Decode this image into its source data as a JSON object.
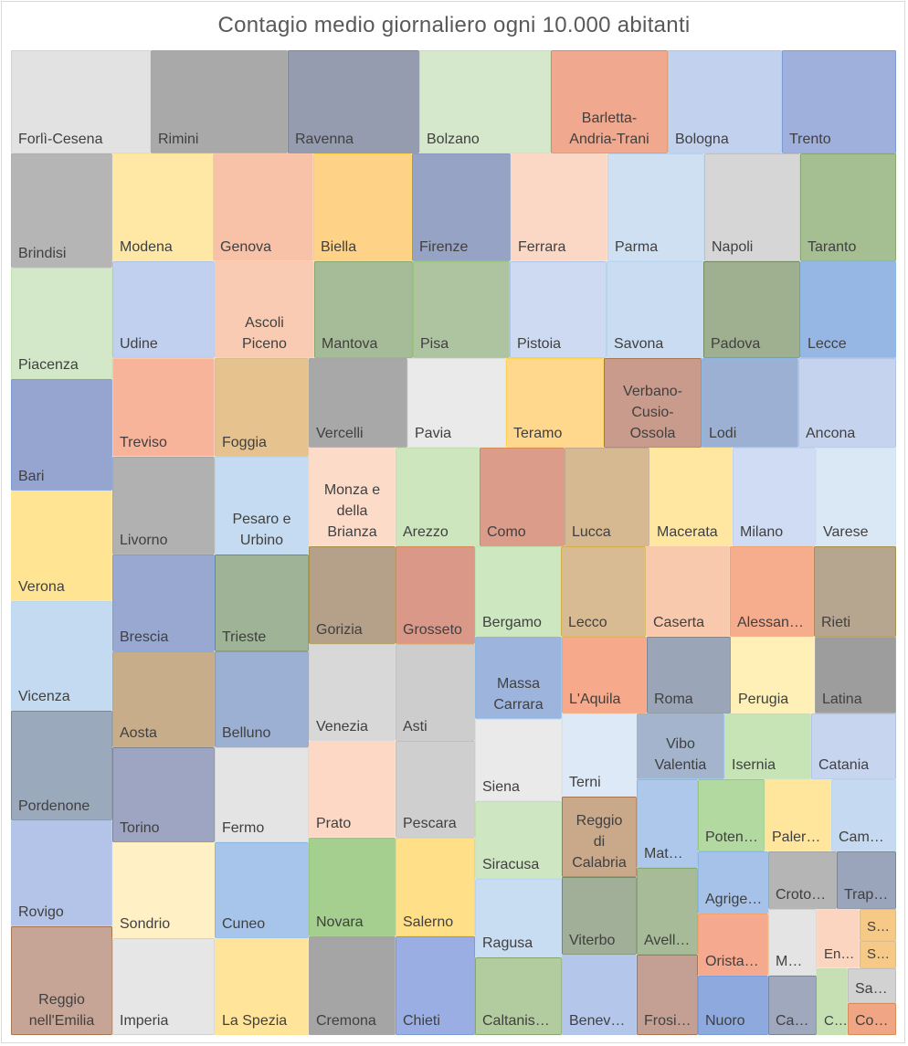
{
  "chart_data": {
    "type": "treemap",
    "title": "Contagio medio giornaliero ogni 10.000 abitanti",
    "values_note": "",
    "items": [
      {
        "name": "Forlì-Cesena",
        "color": "#e2e2e2",
        "border": "#bfbfbf"
      },
      {
        "name": "Rimini",
        "color": "#a9a9a9",
        "border": "#7f7f7f"
      },
      {
        "name": "Ravenna",
        "color": "#959cb0",
        "border": "#4a5370"
      },
      {
        "name": "Bolzano",
        "color": "#d5e8cb",
        "border": "#a9d18e"
      },
      {
        "name": "Barletta-Andria-Trani",
        "color": "#f0a88e",
        "border": "#c55a11"
      },
      {
        "name": "Bologna",
        "color": "#c2d1ee",
        "border": "#8faadc"
      },
      {
        "name": "Trento",
        "color": "#9fb0dd",
        "border": "#4472c4"
      },
      {
        "name": "Brindisi",
        "color": "#b5b5b5",
        "border": "#8c8c8c"
      },
      {
        "name": "Modena",
        "color": "#ffe8a6",
        "border": "#ffd966"
      },
      {
        "name": "Genova",
        "color": "#f8c2a8",
        "border": "#f4b183"
      },
      {
        "name": "Biella",
        "color": "#ffd387",
        "border": "#ffc000"
      },
      {
        "name": "Firenze",
        "color": "#97a3c4",
        "border": "#5a6b9e"
      },
      {
        "name": "Ferrara",
        "color": "#fbd8c6",
        "border": "#f8cbad"
      },
      {
        "name": "Parma",
        "color": "#cfe0f2",
        "border": "#9dc3e6"
      },
      {
        "name": "Napoli",
        "color": "#d6d6d6",
        "border": "#a6a6a6"
      },
      {
        "name": "Taranto",
        "color": "#a5bf93",
        "border": "#548235"
      },
      {
        "name": "Piacenza",
        "color": "#d3e8c8",
        "border": "#a9d18e"
      },
      {
        "name": "Udine",
        "color": "#c1d0ee",
        "border": "#8faadc"
      },
      {
        "name": "Ascoli Piceno",
        "color": "#f9cbb3",
        "border": "#f4b183"
      },
      {
        "name": "Mantova",
        "color": "#a6bb98",
        "border": "#548235"
      },
      {
        "name": "Pisa",
        "color": "#aec3a0",
        "border": "#70ad47"
      },
      {
        "name": "Pistoia",
        "color": "#cddaf2",
        "border": "#8faadc"
      },
      {
        "name": "Savona",
        "color": "#c9dcf1",
        "border": "#9dc3e6"
      },
      {
        "name": "Padova",
        "color": "#9eb08f",
        "border": "#385723"
      },
      {
        "name": "Lecce",
        "color": "#96b7e3",
        "border": "#5b9bd5"
      },
      {
        "name": "Bari",
        "color": "#95a5d0",
        "border": "#4472c4"
      },
      {
        "name": "Treviso",
        "color": "#f7b49a",
        "border": "#f4b183"
      },
      {
        "name": "Foggia",
        "color": "#e6c38e",
        "border": "#c9a15e"
      },
      {
        "name": "Vercelli",
        "color": "#a8a8a8",
        "border": "#7f7f7f"
      },
      {
        "name": "Pavia",
        "color": "#eaeaea",
        "border": "#d0d0d0"
      },
      {
        "name": "Teramo",
        "color": "#ffd88d",
        "border": "#ffc000"
      },
      {
        "name": "Verbano-Cusio-Ossola",
        "color": "#c99b8c",
        "border": "#843c0c"
      },
      {
        "name": "Lodi",
        "color": "#9bb0d2",
        "border": "#5b9bd5"
      },
      {
        "name": "Ancona",
        "color": "#c6d3ee",
        "border": "#8faadc"
      },
      {
        "name": "Verona",
        "color": "#ffe493",
        "border": "#ffd966"
      },
      {
        "name": "Livorno",
        "color": "#b1b1b1",
        "border": "#808080"
      },
      {
        "name": "Pesaro e Urbino",
        "color": "#c5dbf1",
        "border": "#9dc3e6"
      },
      {
        "name": "Monza e della Brianza",
        "color": "#fcdcc9",
        "border": "#f8cbad"
      },
      {
        "name": "Arezzo",
        "color": "#cde6be",
        "border": "#a9d18e"
      },
      {
        "name": "Como",
        "color": "#dc9c8a",
        "border": "#c55a11"
      },
      {
        "name": "Lucca",
        "color": "#d6b891",
        "border": "#a9845c"
      },
      {
        "name": "Macerata",
        "color": "#ffe7a2",
        "border": "#ffd966"
      },
      {
        "name": "Milano",
        "color": "#d0dcf3",
        "border": "#a9bde6"
      },
      {
        "name": "Varese",
        "color": "#dae7f5",
        "border": "#bdd7ee"
      },
      {
        "name": "Vicenza",
        "color": "#c3daf1",
        "border": "#9dc3e6"
      },
      {
        "name": "Brescia",
        "color": "#98a8d0",
        "border": "#4472c4"
      },
      {
        "name": "Trieste",
        "color": "#9fb397",
        "border": "#385723"
      },
      {
        "name": "Gorizia",
        "color": "#b5a08a",
        "border": "#7f6000"
      },
      {
        "name": "Grosseto",
        "color": "#d99888",
        "border": "#c55a11"
      },
      {
        "name": "Bergamo",
        "color": "#cde8c0",
        "border": "#a9d18e"
      },
      {
        "name": "Lecco",
        "color": "#d8bb92",
        "border": "#bf9000"
      },
      {
        "name": "Caserta",
        "color": "#f9c9ad",
        "border": "#f4b183"
      },
      {
        "name": "Alessandria",
        "color": "#f6ad8e",
        "border": "#ed7d31"
      },
      {
        "name": "Rieti",
        "color": "#b6a58f",
        "border": "#7f6000"
      },
      {
        "name": "Pordenone",
        "color": "#9ba9bd",
        "border": "#44546a"
      },
      {
        "name": "Aosta",
        "color": "#c8ad8a",
        "border": "#9c7b4d"
      },
      {
        "name": "Belluno",
        "color": "#9cb0d3",
        "border": "#4472c4"
      },
      {
        "name": "Venezia",
        "color": "#d8d8d8",
        "border": "#bfbfbf"
      },
      {
        "name": "Asti",
        "color": "#cdcdcd",
        "border": "#a6a6a6"
      },
      {
        "name": "Massa Carrara",
        "color": "#9db4dd",
        "border": "#5b9bd5"
      },
      {
        "name": "L'Aquila",
        "color": "#f6a98b",
        "border": "#ed7d31"
      },
      {
        "name": "Roma",
        "color": "#9aa5b8",
        "border": "#44546a"
      },
      {
        "name": "Perugia",
        "color": "#fff0b8",
        "border": "#ffe699"
      },
      {
        "name": "Latina",
        "color": "#9d9d9d",
        "border": "#7f7f7f"
      },
      {
        "name": "Rovigo",
        "color": "#b3c4e8",
        "border": "#8faadc"
      },
      {
        "name": "Torino",
        "color": "#9ea5c2",
        "border": "#44546a"
      },
      {
        "name": "Fermo",
        "color": "#e4e4e4",
        "border": "#bfbfbf"
      },
      {
        "name": "Prato",
        "color": "#fcd8c5",
        "border": "#f8cbad"
      },
      {
        "name": "Pescara",
        "color": "#cfcfcf",
        "border": "#a6a6a6"
      },
      {
        "name": "Siena",
        "color": "#eaeaea",
        "border": "#d0d0d0"
      },
      {
        "name": "Terni",
        "color": "#dde9f6",
        "border": "#bdd7ee"
      },
      {
        "name": "Vibo Valentia",
        "color": "#a3b4cc",
        "border": "#5b9bd5"
      },
      {
        "name": "Isernia",
        "color": "#c6e4b5",
        "border": "#a9d18e"
      },
      {
        "name": "Catania",
        "color": "#c8d5ef",
        "border": "#8faadc"
      },
      {
        "name": "Siracusa",
        "color": "#cfe6c2",
        "border": "#a9d18e"
      },
      {
        "name": "Reggio di Calabria",
        "color": "#c9a98a",
        "border": "#843c0c"
      },
      {
        "name": "Matera",
        "color": "#adc8ea",
        "border": "#5b9bd5"
      },
      {
        "name": "Potenza",
        "color": "#b2d9a0",
        "border": "#70ad47"
      },
      {
        "name": "Palermo",
        "color": "#ffe69c",
        "border": "#ffd966"
      },
      {
        "name": "Campobasso",
        "color": "#c5daf0",
        "border": "#9dc3e6"
      },
      {
        "name": "Sondrio",
        "color": "#fff0c5",
        "border": "#ffe699"
      },
      {
        "name": "Cuneo",
        "color": "#a7c5ea",
        "border": "#5b9bd5"
      },
      {
        "name": "Novara",
        "color": "#a5cf8e",
        "border": "#70ad47"
      },
      {
        "name": "Salerno",
        "color": "#ffdf88",
        "border": "#ffc000"
      },
      {
        "name": "Ragusa",
        "color": "#c9ddf2",
        "border": "#9dc3e6"
      },
      {
        "name": "Viterbo",
        "color": "#a1ae98",
        "border": "#385723"
      },
      {
        "name": "Avellino",
        "color": "#a7bb98",
        "border": "#548235"
      },
      {
        "name": "Agrigento",
        "color": "#a6c2e8",
        "border": "#5b9bd5"
      },
      {
        "name": "Crotone",
        "color": "#b5b5b5",
        "border": "#7f7f7f"
      },
      {
        "name": "Trapani",
        "color": "#9aa4bb",
        "border": "#44546a"
      },
      {
        "name": "Oristano",
        "color": "#f5a98e",
        "border": "#ed7d31"
      },
      {
        "name": "Medio Campidano",
        "color": "#e4e4e4",
        "border": "#bfbfbf"
      },
      {
        "name": "Enna",
        "color": "#fcd5c0",
        "border": "#f8cbad"
      },
      {
        "name": "Sassari",
        "color": "#f6c987",
        "border": "#c9a15e"
      },
      {
        "name": "Sud Sardegna",
        "color": "#f6c987",
        "border": "#c9a15e"
      },
      {
        "name": "Reggio nell'Emilia",
        "color": "#c6a597",
        "border": "#843c0c"
      },
      {
        "name": "Imperia",
        "color": "#e6e6e6",
        "border": "#bfbfbf"
      },
      {
        "name": "La Spezia",
        "color": "#ffe49a",
        "border": "#ffd966"
      },
      {
        "name": "Cremona",
        "color": "#a5a5a5",
        "border": "#7f7f7f"
      },
      {
        "name": "Chieti",
        "color": "#9aaee4",
        "border": "#4472c4"
      },
      {
        "name": "Caltanissetta",
        "color": "#b2cb9f",
        "border": "#548235"
      },
      {
        "name": "Benevento",
        "color": "#b4c6ea",
        "border": "#8faadc"
      },
      {
        "name": "Frosinone",
        "color": "#c4a094",
        "border": "#843c0c"
      },
      {
        "name": "Nuoro",
        "color": "#8ea9dd",
        "border": "#4472c4"
      },
      {
        "name": "Cagliari",
        "color": "#9fa8bd",
        "border": "#44546a"
      },
      {
        "name": "Carbonia-Iglesias",
        "color": "#c6e0b4",
        "border": "#a9d18e"
      },
      {
        "name": "Savona-area",
        "color": "#d2d2d2",
        "border": "#a6a6a6"
      },
      {
        "name": "Cosenza",
        "color": "#f0a584",
        "border": "#c55a11"
      }
    ]
  }
}
